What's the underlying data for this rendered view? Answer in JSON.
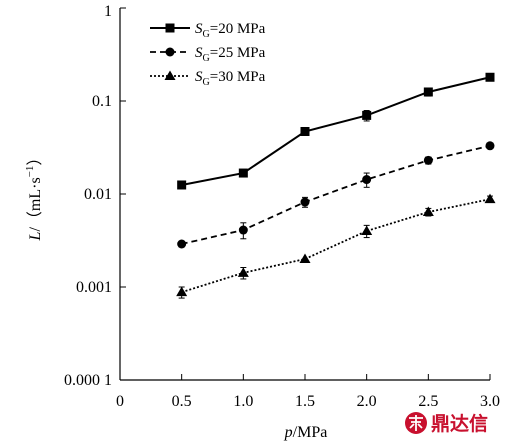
{
  "chart_data": {
    "type": "line",
    "xlabel": {
      "var": "p",
      "unit": "/MPa"
    },
    "ylabel": {
      "var": "L",
      "unit": "/（mL·s",
      "exp": "−1",
      "close": "）"
    },
    "xlim": [
      0,
      3.0
    ],
    "ylim": [
      0.0001,
      1
    ],
    "yscale": "log",
    "x_ticks": [
      0,
      0.5,
      1.0,
      1.5,
      2.0,
      2.5,
      3.0
    ],
    "x_tick_labels": [
      "0",
      "0.5",
      "1.0",
      "1.5",
      "2.0",
      "2.5",
      "3.0"
    ],
    "y_ticks": [
      0.0001,
      0.001,
      0.01,
      0.1,
      1
    ],
    "y_tick_labels": [
      "0.000 1",
      "0.001",
      "0.01",
      "0.1",
      "1"
    ],
    "grid": false,
    "legend_position": "top-left",
    "x": [
      0.5,
      1.0,
      1.5,
      2.0,
      2.5,
      3.0
    ],
    "series": [
      {
        "name_var": "S",
        "name_sub": "G",
        "name_rest": "=20 MPa",
        "marker": "square",
        "linestyle": "solid",
        "color": "#000000",
        "values": [
          0.0125,
          0.0168,
          0.047,
          0.07,
          0.125,
          0.18
        ],
        "err": [
          0,
          0,
          0,
          0.009,
          0.012,
          0
        ]
      },
      {
        "name_var": "S",
        "name_sub": "G",
        "name_rest": "=25 MPa",
        "marker": "circle",
        "linestyle": "dashed",
        "color": "#000000",
        "values": [
          0.0029,
          0.0041,
          0.0082,
          0.0143,
          0.023,
          0.033
        ],
        "err": [
          0,
          0.0008,
          0.001,
          0.0025,
          0.002,
          0.002
        ]
      },
      {
        "name_var": "S",
        "name_sub": "G",
        "name_rest": "=30 MPa",
        "marker": "triangle",
        "linestyle": "dotted",
        "color": "#000000",
        "values": [
          0.00088,
          0.00142,
          0.002,
          0.004,
          0.0064,
          0.0088
        ],
        "err": [
          0.00012,
          0.0002,
          0,
          0.0006,
          0.0006,
          0.0007
        ]
      }
    ]
  },
  "watermark": {
    "text": "鼎达信",
    "color": "#c8102e"
  }
}
